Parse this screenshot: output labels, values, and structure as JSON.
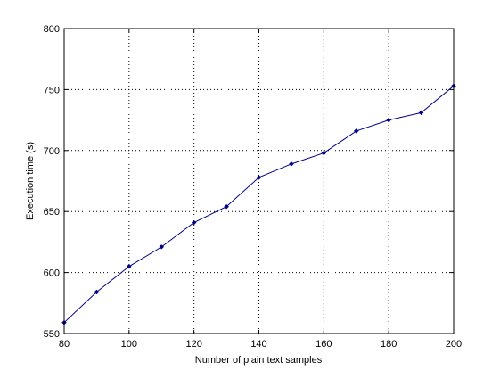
{
  "chart_data": {
    "type": "line",
    "title": "",
    "xlabel": "Number of plain text samples",
    "ylabel": "Execution time (s)",
    "xlim": [
      80,
      200
    ],
    "ylim": [
      550,
      800
    ],
    "x_ticks": [
      80,
      100,
      120,
      140,
      160,
      180,
      200
    ],
    "y_ticks": [
      550,
      600,
      650,
      700,
      750,
      800
    ],
    "grid": true,
    "legend": "none",
    "series": [
      {
        "color": "#00008b",
        "marker": "diamond",
        "x": [
          80,
          90,
          100,
          110,
          120,
          130,
          140,
          150,
          160,
          170,
          180,
          190,
          200
        ],
        "y": [
          559,
          584,
          605,
          621,
          641,
          654,
          678,
          689,
          698,
          716,
          725,
          731,
          753
        ]
      }
    ]
  }
}
